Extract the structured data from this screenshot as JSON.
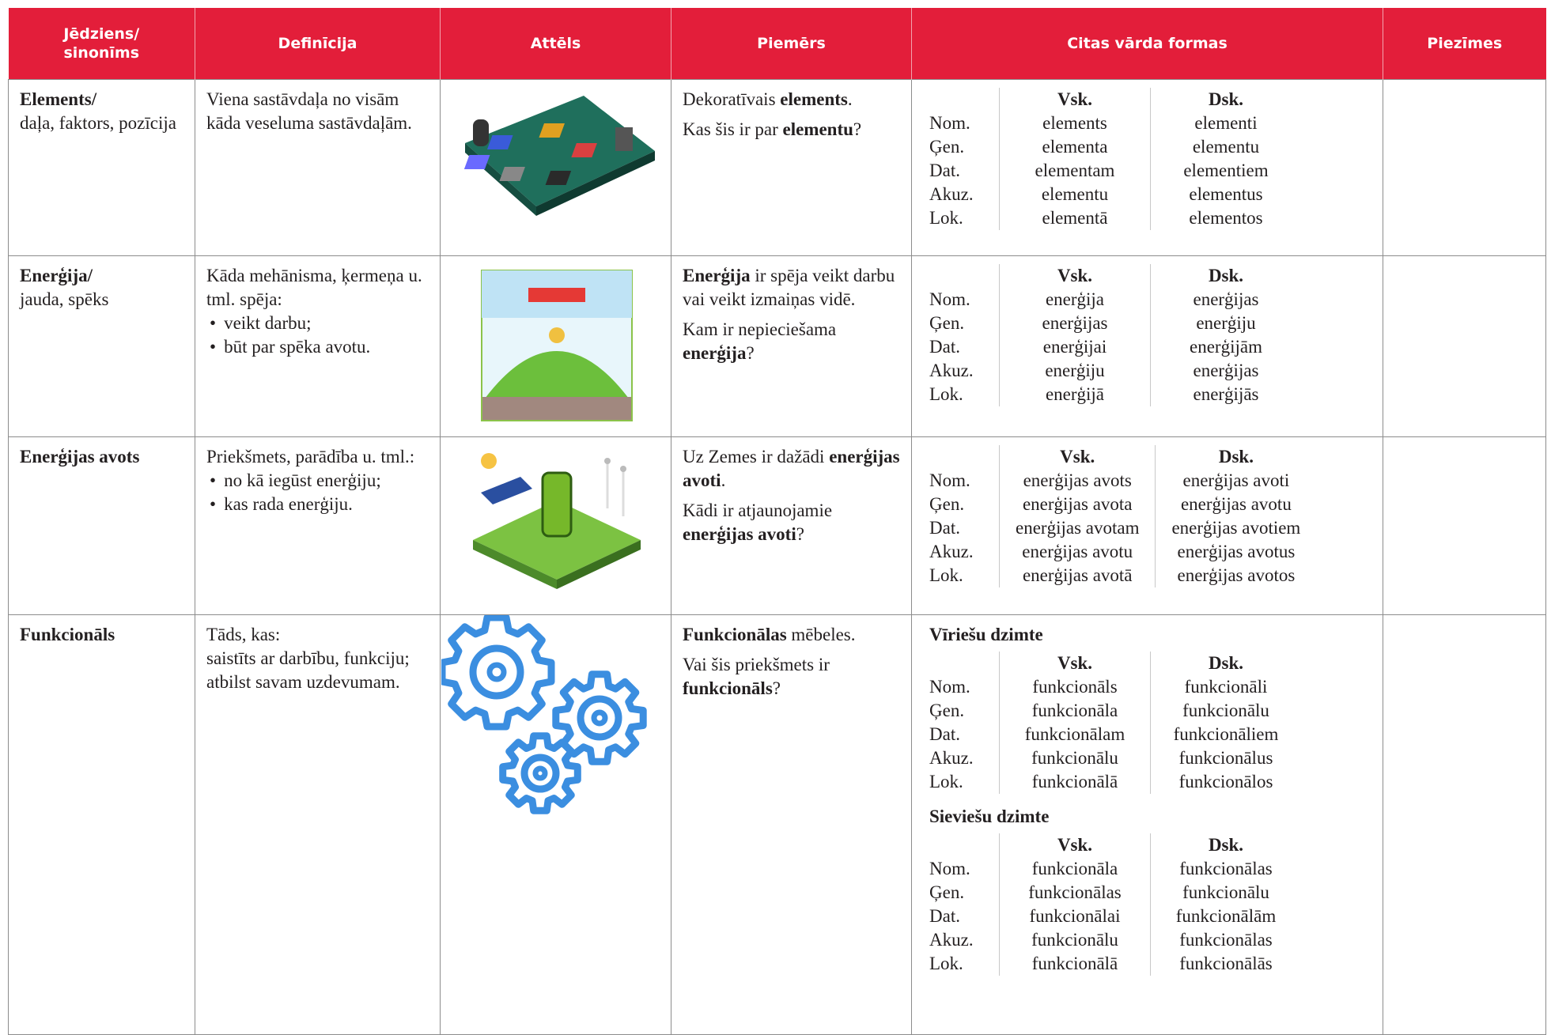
{
  "header": {
    "columns": [
      "Jēdziens/\nsinonīms",
      "Definīcija",
      "Attēls",
      "Piemērs",
      "Citas vārda formas",
      "Piezīmes"
    ]
  },
  "rows": [
    {
      "term": {
        "headword": "Elements/",
        "synonyms": "daļa, faktors, pozīcija"
      },
      "definition": {
        "lines": [
          "Viena sastāvdaļa no visām kāda veseluma sastāvdaļām."
        ]
      },
      "examples": [
        [
          "Dekoratīvais ",
          {
            "bold": "elements"
          },
          "."
        ],
        [
          "Kas šis ir par ",
          {
            "bold": "elementu"
          },
          "?"
        ]
      ],
      "forms": [
        {
          "headers": [
            "Vsk.",
            "Dsk."
          ],
          "cases": [
            "Nom.",
            "Ģen.",
            "Dat.",
            "Akuz.",
            "Lok."
          ],
          "singular": [
            "elements",
            "elementa",
            "elementam",
            "elementu",
            "elementā"
          ],
          "plural": [
            "elementi",
            "elementu",
            "elementiem",
            "elementus",
            "elementos"
          ]
        }
      ]
    },
    {
      "term": {
        "headword": "Enerģija/",
        "synonyms": "jauda, spēks"
      },
      "definition": {
        "lines": [
          "Kāda mehānisma, ķermeņa u. tml. spēja:"
        ],
        "bullets": [
          "veikt darbu;",
          "būt par spēka avotu."
        ]
      },
      "examples": [
        [
          {
            "bold": "Enerģija"
          },
          " ir spēja veikt darbu vai veikt izmaiņas vidē."
        ],
        [
          "Kam ir nepieciešama ",
          {
            "bold": "enerģija"
          },
          "?"
        ]
      ],
      "forms": [
        {
          "headers": [
            "Vsk.",
            "Dsk."
          ],
          "cases": [
            "Nom.",
            "Ģen.",
            "Dat.",
            "Akuz.",
            "Lok."
          ],
          "singular": [
            "enerģija",
            "enerģijas",
            "enerģijai",
            "enerģiju",
            "enerģijā"
          ],
          "plural": [
            "enerģijas",
            "enerģiju",
            "enerģijām",
            "enerģijas",
            "enerģijās"
          ]
        }
      ]
    },
    {
      "term": {
        "headword": "Enerģijas avots"
      },
      "definition": {
        "lines": [
          "Priekšmets, parādība u. tml.:"
        ],
        "bullets": [
          "no kā iegūst enerģiju;",
          "kas rada enerģiju."
        ]
      },
      "examples": [
        [
          "Uz Zemes ir dažādi ",
          {
            "bold": "enerģijas avoti"
          },
          "."
        ],
        [
          "Kādi ir atjaunojamie ",
          {
            "bold": "enerģijas avoti"
          },
          "?"
        ]
      ],
      "forms": [
        {
          "headers": [
            "Vsk.",
            "Dsk."
          ],
          "cases": [
            "Nom.",
            "Ģen.",
            "Dat.",
            "Akuz.",
            "Lok."
          ],
          "singular": [
            "enerģijas avots",
            "enerģijas avota",
            "enerģijas avotam",
            "enerģijas avotu",
            "enerģijas avotā"
          ],
          "plural": [
            "enerģijas avoti",
            "enerģijas avotu",
            "enerģijas avotiem",
            "enerģijas avotus",
            "enerģijas avotos"
          ]
        }
      ]
    },
    {
      "term": {
        "headword": "Funkcionāls"
      },
      "definition": {
        "lines": [
          "Tāds, kas:",
          "saistīts ar darbību, funkciju; atbilst savam uzdevumam."
        ]
      },
      "examples": [
        [
          {
            "bold": "Funkcionālas"
          },
          " mēbeles."
        ],
        [
          "Vai šis priekšmets ir ",
          {
            "bold": "funkcionāls"
          },
          "?"
        ]
      ],
      "forms": [
        {
          "gender": "Vīriešu dzimte",
          "headers": [
            "Vsk.",
            "Dsk."
          ],
          "cases": [
            "Nom.",
            "Ģen.",
            "Dat.",
            "Akuz.",
            "Lok."
          ],
          "singular": [
            "funkcionāls",
            "funkcionāla",
            "funkcionālam",
            "funkcionālu",
            "funkcionālā"
          ],
          "plural": [
            "funkcionāli",
            "funkcionālu",
            "funkcionāliem",
            "funkcionālus",
            "funkcionālos"
          ]
        },
        {
          "gender": "Sieviešu dzimte",
          "headers": [
            "Vsk.",
            "Dsk."
          ],
          "cases": [
            "Nom.",
            "Ģen.",
            "Dat.",
            "Akuz.",
            "Lok."
          ],
          "singular": [
            "funkcionāla",
            "funkcionālas",
            "funkcionālai",
            "funkcionālu",
            "funkcionālā"
          ],
          "plural": [
            "funkcionālas",
            "funkcionālu",
            "funkcionālām",
            "funkcionālas",
            "funkcionālās"
          ]
        }
      ]
    }
  ]
}
